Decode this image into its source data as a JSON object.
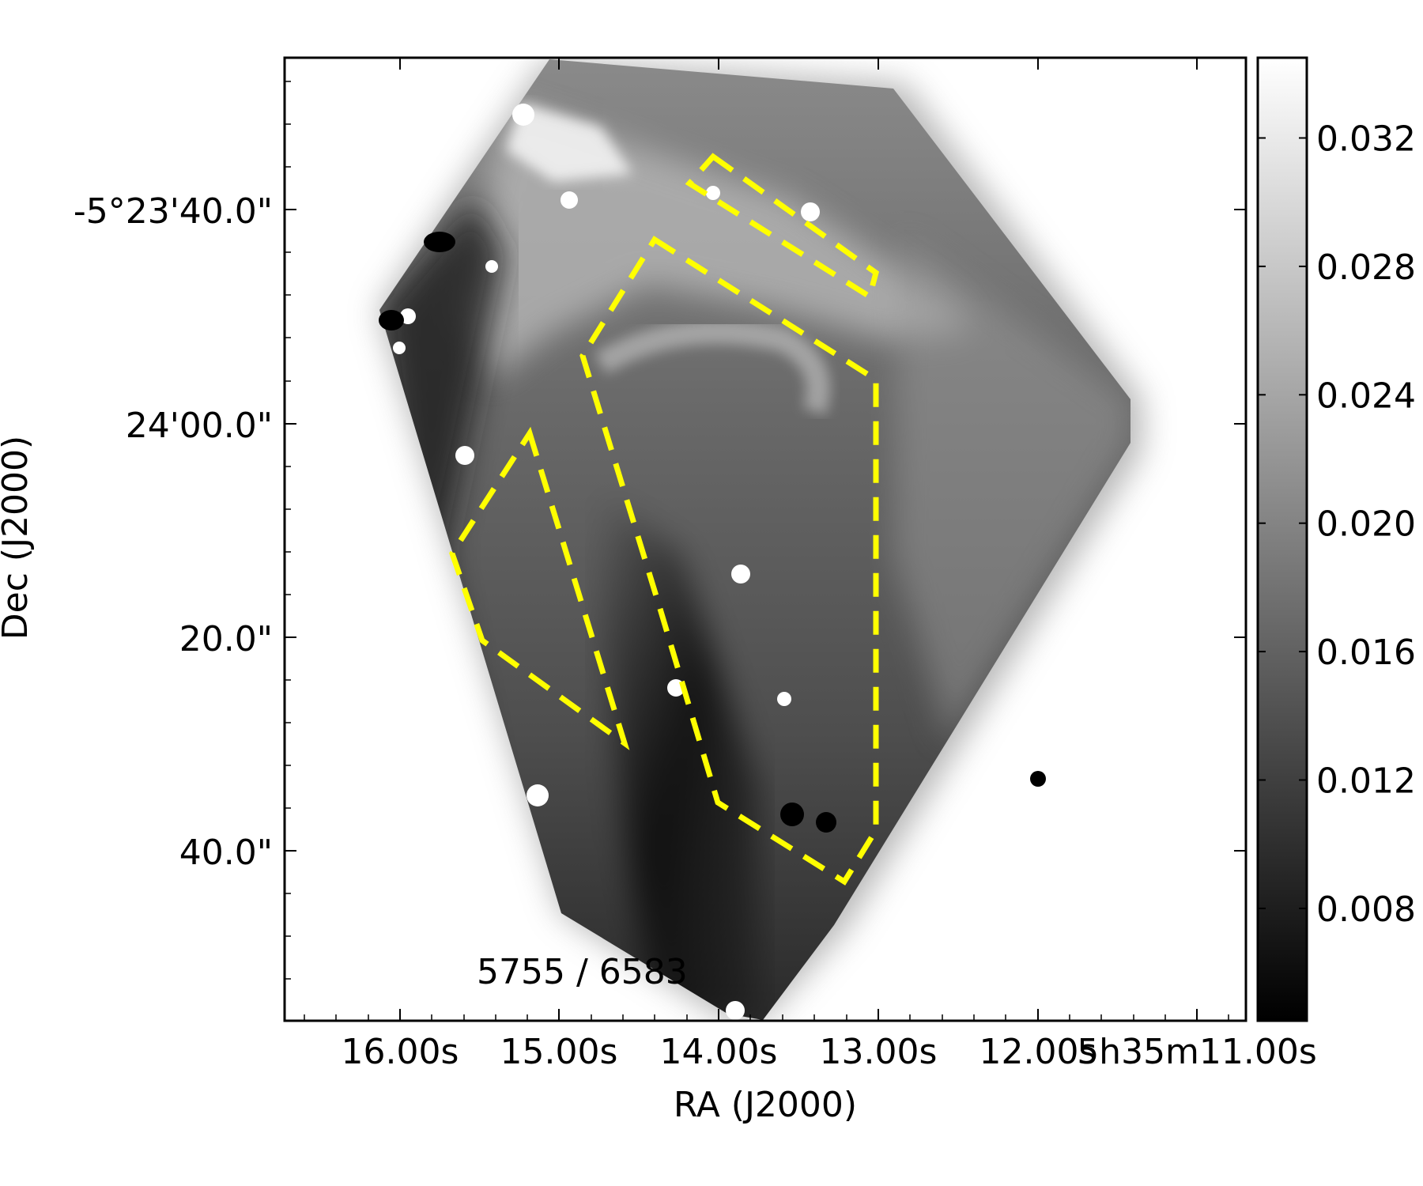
{
  "chart_data": {
    "type": "heatmap",
    "title": "",
    "xlabel": "RA (J2000)",
    "ylabel": "Dec (J2000)",
    "annotation": "5755 / 6583",
    "colormap": "gray",
    "x_ticks": [
      "16.00s",
      "15.00s",
      "14.00s",
      "13.00s",
      "12.00s",
      "5h35m11.00s"
    ],
    "y_ticks": [
      "-5°23'40.0\"",
      "24'00.0\"",
      "20.0\"",
      "40.0\""
    ],
    "colorbar": {
      "ticks": [
        "0.032",
        "0.028",
        "0.024",
        "0.020",
        "0.016",
        "0.012",
        "0.008"
      ],
      "tick_values": [
        0.032,
        0.028,
        0.024,
        0.02,
        0.016,
        0.012,
        0.008
      ],
      "range": [
        0.0045,
        0.0345
      ]
    },
    "region_outline_color": "#ffff00",
    "grid": false
  }
}
